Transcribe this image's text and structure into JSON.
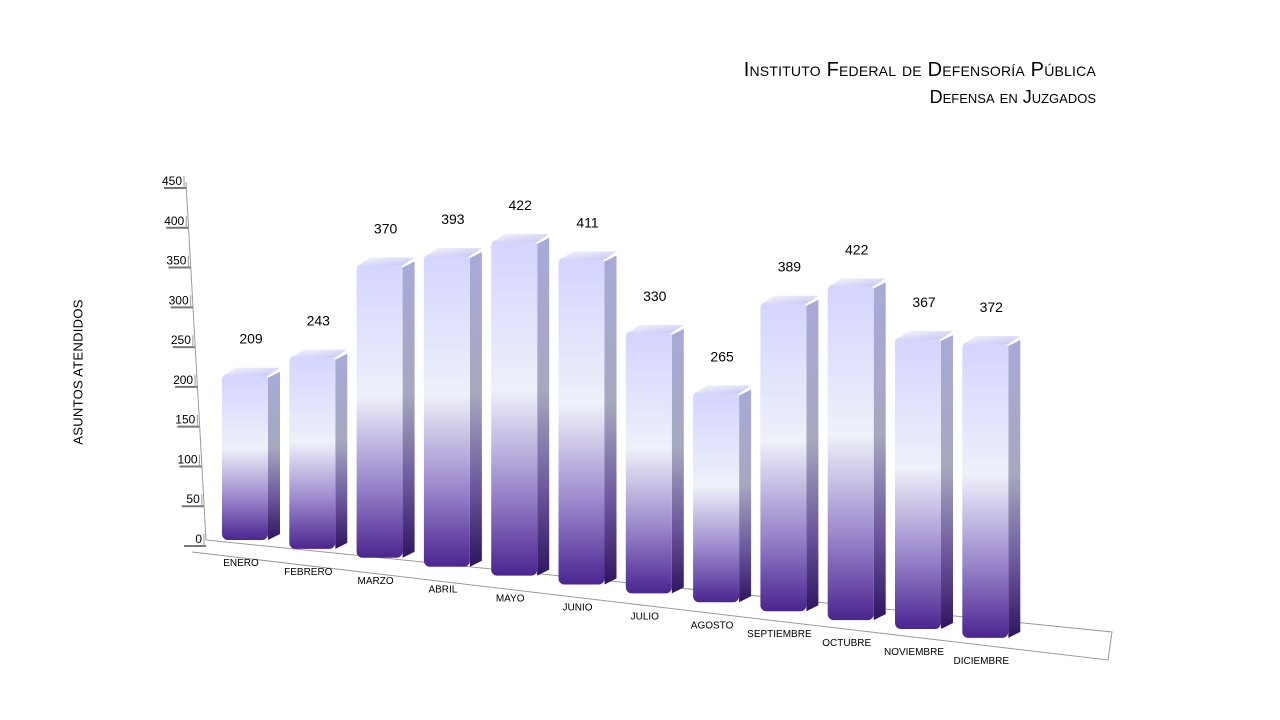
{
  "title": {
    "line1": "Instituto Federal de Defensoría Pública",
    "line2": "Defensa en Juzgados"
  },
  "chart_data": {
    "type": "bar",
    "title": "Instituto Federal de Defensoría Pública - Defensa en Juzgados",
    "ylabel": "ASUNTOS ATENDIDOS",
    "xlabel": "",
    "ylim": [
      0,
      450
    ],
    "yticks": [
      0,
      50,
      100,
      150,
      200,
      250,
      300,
      350,
      400,
      450
    ],
    "categories": [
      "ENERO",
      "FEBRERO",
      "MARZO",
      "ABRIL",
      "MAYO",
      "JUNIO",
      "JULIO",
      "AGOSTO",
      "SEPTIEMBRE",
      "OCTUBRE",
      "NOVIEMBRE",
      "DICIEMBRE"
    ],
    "values": [
      209,
      243,
      370,
      393,
      422,
      411,
      330,
      265,
      389,
      422,
      367,
      372
    ],
    "colors": {
      "bar_top": "#d4d4ff",
      "bar_mid": "#eef0fa",
      "bar_bottom": "#4b2590"
    }
  }
}
